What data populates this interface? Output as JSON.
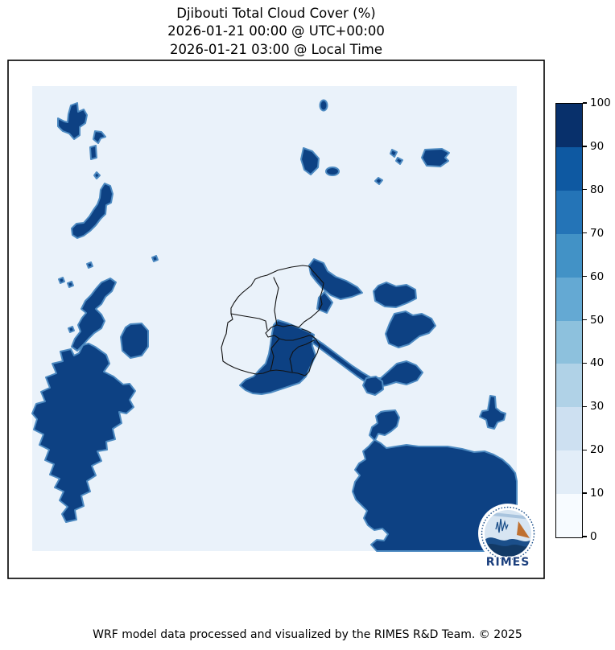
{
  "title": {
    "line1": "Djibouti Total Cloud Cover (%)",
    "line2": "2026-01-21 00:00 @ UTC+00:00",
    "line3": "2026-01-21 03:00 @ Local Time"
  },
  "footer": "WRF model data processed and visualized by the RIMES R&D Team. © 2025",
  "logo": {
    "text": "RIMES"
  },
  "colors": {
    "background": "#ffffff",
    "cloud_low": "#eaf2fa",
    "cloud_high": "#0d4183",
    "cloud_edge": "#4d8ac1",
    "admin_boundary": "#111111",
    "frame": "#000000",
    "text": "#000000",
    "logo_blue": "#1b4f8a",
    "logo_light": "#d7e5f2",
    "logo_orange": "#bf7030",
    "logo_text": "#1b3f7d"
  },
  "chart_data": {
    "type": "heatmap",
    "title": "Djibouti Total Cloud Cover (%)",
    "timestamp_utc": "2026-01-21 00:00 @ UTC+00:00",
    "timestamp_local": "2026-01-21 03:00 @ Local Time",
    "variable": "Total Cloud Cover",
    "units": "%",
    "region": "Djibouti",
    "legend_position": "right",
    "colorbar": {
      "range": [
        0,
        100
      ],
      "ticks": [
        0,
        10,
        20,
        30,
        40,
        50,
        60,
        70,
        80,
        90,
        100
      ],
      "colors": [
        "#f7fbff",
        "#e2edf8",
        "#cde0f1",
        "#b0d2e7",
        "#8dc1dd",
        "#64a9d3",
        "#4292c6",
        "#2474b7",
        "#0e59a2",
        "#08306b"
      ],
      "low_value_color": "#eaf2fa",
      "high_value_color": "#0d4183"
    },
    "description_of_field": "Binary-looking cloud field: background near 0-10%, dense cloud patches near 90-100%"
  }
}
